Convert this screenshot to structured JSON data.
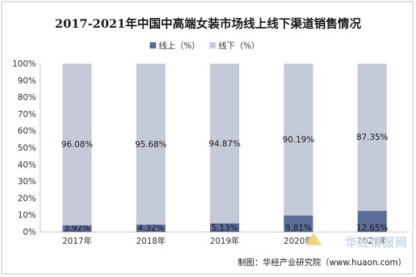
{
  "chart_data": {
    "type": "bar",
    "stacked": true,
    "title": "2017-2021年中国中高端女装市场线上线下渠道销售情况",
    "categories": [
      "2017年",
      "2018年",
      "2019年",
      "2020年",
      "2021年"
    ],
    "series": [
      {
        "name": "线上（%）",
        "values": [
          3.92,
          4.32,
          5.13,
          9.81,
          12.65
        ],
        "labels": [
          "3.92%",
          "4.32%",
          "5.13%",
          "9.81%",
          "12.65%"
        ],
        "color": "#5b6e9a"
      },
      {
        "name": "线下（%）",
        "values": [
          96.08,
          95.68,
          94.87,
          90.19,
          87.35
        ],
        "labels": [
          "96.08%",
          "95.68%",
          "94.87%",
          "90.19%",
          "87.35%"
        ],
        "color": "#c5cad9"
      }
    ],
    "yticks": [
      "0%",
      "10%",
      "20%",
      "30%",
      "40%",
      "50%",
      "60%",
      "70%",
      "80%",
      "90%",
      "100%"
    ],
    "ylim": [
      0,
      100
    ],
    "legend": "top"
  },
  "source_text": "制图：华经产业研究院（www.huaon.com）",
  "watermark_text": "华经情报网"
}
